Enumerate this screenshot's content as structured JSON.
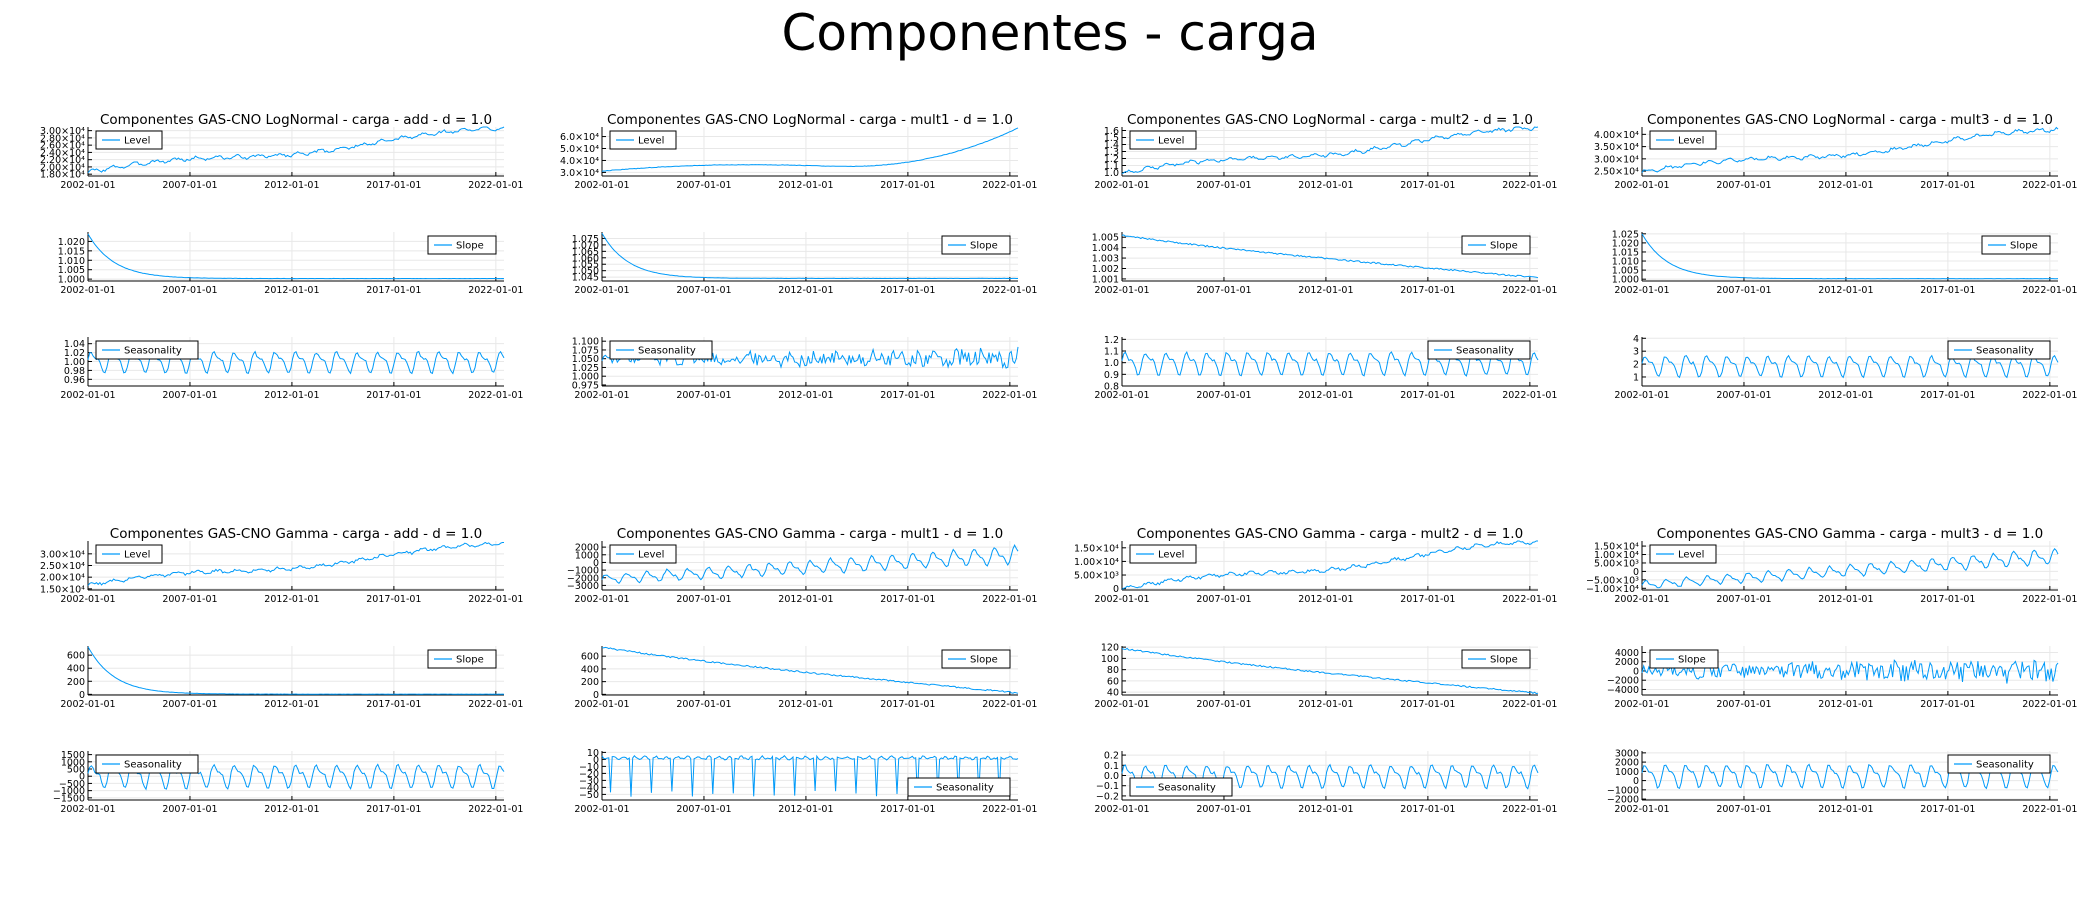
{
  "main_title": "Componentes - carga",
  "colors": {
    "line": "#009af9",
    "axis": "#000000",
    "grid": "#e8e8e8",
    "legend_border": "#000000"
  },
  "chart_data": [
    {
      "title": "Componentes GAS-CNO LogNormal - carga - add - d = 1.0",
      "panels": [
        {
          "type": "line",
          "legend": "Level",
          "legend_pos": "top-left",
          "shape": "trend_rise",
          "ylim": [
            17500,
            31000
          ],
          "yticks": [
            18000,
            20000,
            22000,
            24000,
            26000,
            28000,
            30000
          ],
          "ytick_labels": [
            "1.80×10⁴",
            "2.00×10⁴",
            "2.20×10⁴",
            "2.40×10⁴",
            "2.60×10⁴",
            "2.80×10⁴",
            "3.00×10⁴"
          ],
          "start": 0.08,
          "end": 0.95
        },
        {
          "type": "line",
          "legend": "Slope",
          "legend_pos": "top-right",
          "shape": "fast_decay",
          "ylim": [
            0.999,
            1.025
          ],
          "yticks": [
            1.0,
            1.005,
            1.01,
            1.015,
            1.02
          ],
          "ytick_labels": [
            "1.000",
            "1.005",
            "1.010",
            "1.015",
            "1.020"
          ],
          "start": 1.024,
          "end": 1.0003
        },
        {
          "type": "line",
          "legend": "Seasonality",
          "legend_pos": "top-left",
          "shape": "seasonal",
          "ylim": [
            0.945,
            1.055
          ],
          "yticks": [
            0.96,
            0.98,
            1.0,
            1.02,
            1.04
          ],
          "ytick_labels": [
            "0.96",
            "0.98",
            "1.00",
            "1.02",
            "1.04"
          ],
          "center": 1.0,
          "amp": 0.046
        }
      ]
    },
    {
      "title": "Componentes GAS-CNO LogNormal - carga - mult1 - d = 1.0",
      "panels": [
        {
          "type": "line",
          "legend": "Level",
          "legend_pos": "top-left",
          "shape": "u_curve",
          "ylim": [
            27000,
            68000
          ],
          "yticks": [
            30000,
            40000,
            50000,
            60000
          ],
          "ytick_labels": [
            "3.0×10⁴",
            "4.0×10⁴",
            "5.0×10⁴",
            "6.0×10⁴"
          ],
          "start": 0.1,
          "end": 0.98
        },
        {
          "type": "line",
          "legend": "Slope",
          "legend_pos": "top-right",
          "shape": "fast_decay",
          "ylim": [
            1.042,
            1.08
          ],
          "yticks": [
            1.045,
            1.05,
            1.055,
            1.06,
            1.065,
            1.07,
            1.075
          ],
          "ytick_labels": [
            "1.045",
            "1.050",
            "1.055",
            "1.060",
            "1.065",
            "1.070",
            "1.075"
          ],
          "start": 1.079,
          "end": 1.044
        },
        {
          "type": "line",
          "legend": "Seasonality",
          "legend_pos": "top-left",
          "shape": "noisy",
          "ylim": [
            0.972,
            1.112
          ],
          "yticks": [
            0.975,
            1.0,
            1.025,
            1.05,
            1.075,
            1.1
          ],
          "ytick_labels": [
            "0.975",
            "1.000",
            "1.025",
            "1.050",
            "1.075",
            "1.100"
          ],
          "center": 1.05,
          "amp": 0.02
        }
      ]
    },
    {
      "title": "Componentes GAS-CNO LogNormal - carga - mult2 - d = 1.0",
      "panels": [
        {
          "type": "line",
          "legend": "Level",
          "legend_pos": "top-left",
          "shape": "trend_rise",
          "ylim": [
            0.95,
            1.65
          ],
          "yticks": [
            1.0,
            1.1,
            1.2,
            1.3,
            1.4,
            1.5,
            1.6
          ],
          "ytick_labels": [
            "1.0",
            "1.1",
            "1.2",
            "1.3",
            "1.4",
            "1.5",
            "1.6"
          ],
          "start": 0.06,
          "end": 0.95
        },
        {
          "type": "line",
          "legend": "Slope",
          "legend_pos": "top-right",
          "shape": "linear_decay",
          "ylim": [
            1.0008,
            1.0055
          ],
          "yticks": [
            1.001,
            1.002,
            1.003,
            1.004,
            1.005
          ],
          "ytick_labels": [
            "1.001",
            "1.002",
            "1.003",
            "1.004",
            "1.005"
          ],
          "start": 1.0052,
          "end": 1.0011
        },
        {
          "type": "line",
          "legend": "Seasonality",
          "legend_pos": "top-right",
          "shape": "seasonal",
          "ylim": [
            0.8,
            1.22
          ],
          "yticks": [
            0.8,
            0.9,
            1.0,
            1.1,
            1.2
          ],
          "ytick_labels": [
            "0.8",
            "0.9",
            "1.0",
            "1.1",
            "1.2"
          ],
          "center": 1.0,
          "amp": 0.19
        }
      ]
    },
    {
      "title": "Componentes GAS-CNO LogNormal - carga - mult3 - d = 1.0",
      "panels": [
        {
          "type": "line",
          "legend": "Level",
          "legend_pos": "top-left",
          "shape": "trend_rise",
          "ylim": [
            23000,
            43000
          ],
          "yticks": [
            25000,
            30000,
            35000,
            40000
          ],
          "ytick_labels": [
            "2.50×10⁴",
            "3.00×10⁴",
            "3.50×10⁴",
            "4.00×10⁴"
          ],
          "start": 0.08,
          "end": 0.92
        },
        {
          "type": "line",
          "legend": "Slope",
          "legend_pos": "top-right",
          "shape": "fast_decay",
          "ylim": [
            0.999,
            1.026
          ],
          "yticks": [
            1.0,
            1.005,
            1.01,
            1.015,
            1.02,
            1.025
          ],
          "ytick_labels": [
            "1.000",
            "1.005",
            "1.010",
            "1.015",
            "1.020",
            "1.025"
          ],
          "start": 1.025,
          "end": 1.0003
        },
        {
          "type": "line",
          "legend": "Seasonality",
          "legend_pos": "top-right",
          "shape": "seasonal",
          "ylim": [
            0.3,
            4.1
          ],
          "yticks": [
            1,
            2,
            3,
            4
          ],
          "ytick_labels": [
            "1",
            "2",
            "3",
            "4"
          ],
          "center": 1.9,
          "amp": 1.6
        }
      ]
    },
    {
      "title": "Componentes GAS-CNO Gamma - carga - add - d = 1.0",
      "panels": [
        {
          "type": "line",
          "legend": "Level",
          "legend_pos": "top-left",
          "shape": "trend_rise",
          "ylim": [
            14500,
            35500
          ],
          "yticks": [
            15000,
            20000,
            25000,
            30000
          ],
          "ytick_labels": [
            "1.50×10⁴",
            "2.00×10⁴",
            "2.50×10⁴",
            "3.00×10⁴"
          ],
          "start": 0.1,
          "end": 0.92
        },
        {
          "type": "line",
          "legend": "Slope",
          "legend_pos": "top-right",
          "shape": "fast_decay",
          "ylim": [
            -10,
            740
          ],
          "yticks": [
            0,
            200,
            400,
            600
          ],
          "ytick_labels": [
            "0",
            "200",
            "400",
            "600"
          ],
          "start": 730,
          "end": 3
        },
        {
          "type": "line",
          "legend": "Seasonality",
          "legend_pos": "top-left",
          "shape": "seasonal",
          "ylim": [
            -1650,
            1750
          ],
          "yticks": [
            -1500,
            -1000,
            -500,
            0,
            500,
            1000,
            1500
          ],
          "ytick_labels": [
            "−1500",
            "−1000",
            "−500",
            "0",
            "500",
            "1000",
            "1500"
          ],
          "center": 50,
          "amp": 1600
        }
      ]
    },
    {
      "title": "Componentes GAS-CNO Gamma - carga - mult1 - d = 1.0",
      "panels": [
        {
          "type": "line",
          "legend": "Level",
          "legend_pos": "top-left",
          "shape": "seasonal_trend",
          "ylim": [
            -3600,
            2800
          ],
          "yticks": [
            -3000,
            -2000,
            -1000,
            0,
            1000,
            2000
          ],
          "ytick_labels": [
            "−3000",
            "−2000",
            "−1000",
            "0",
            "1000",
            "2000"
          ],
          "start": -2200,
          "end": 1000,
          "amp": 1300
        },
        {
          "type": "line",
          "legend": "Slope",
          "legend_pos": "top-right",
          "shape": "linear_decay",
          "ylim": [
            -10,
            760
          ],
          "yticks": [
            0,
            200,
            400,
            600
          ],
          "ytick_labels": [
            "0",
            "200",
            "400",
            "600"
          ],
          "start": 740,
          "end": 20
        },
        {
          "type": "line",
          "legend": "Seasonality",
          "legend_pos": "bottom-right",
          "shape": "spiky",
          "ylim": [
            -58,
            12
          ],
          "yticks": [
            -50,
            -40,
            -30,
            -20,
            -10,
            0,
            10
          ],
          "ytick_labels": [
            "−50",
            "−40",
            "−30",
            "−20",
            "−10",
            "0",
            "10"
          ],
          "center": 6,
          "amp": 60
        }
      ]
    },
    {
      "title": "Componentes GAS-CNO Gamma - carga - mult2 - d = 1.0",
      "panels": [
        {
          "type": "line",
          "legend": "Level",
          "legend_pos": "top-left",
          "shape": "trend_rise",
          "ylim": [
            -500,
            17500
          ],
          "yticks": [
            0,
            5000,
            10000,
            15000
          ],
          "ytick_labels": [
            "0",
            "5.00×10³",
            "1.00×10⁴",
            "1.50×10⁴"
          ],
          "start": 0.02,
          "end": 0.96
        },
        {
          "type": "line",
          "legend": "Slope",
          "legend_pos": "top-right",
          "shape": "linear_decay",
          "ylim": [
            35,
            122
          ],
          "yticks": [
            40,
            60,
            80,
            100,
            120
          ],
          "ytick_labels": [
            "40",
            "60",
            "80",
            "100",
            "120"
          ],
          "start": 118,
          "end": 38
        },
        {
          "type": "line",
          "legend": "Seasonality",
          "legend_pos": "bottom-left",
          "shape": "seasonal",
          "ylim": [
            -0.24,
            0.24
          ],
          "yticks": [
            -0.2,
            -0.1,
            0.0,
            0.1,
            0.2
          ],
          "ytick_labels": [
            "−0.2",
            "−0.1",
            "0.0",
            "0.1",
            "0.2"
          ],
          "center": 0.0,
          "amp": 0.22
        }
      ]
    },
    {
      "title": "Componentes GAS-CNO Gamma - carga - mult3 - d = 1.0",
      "panels": [
        {
          "type": "line",
          "legend": "Level",
          "legend_pos": "top-left",
          "shape": "seasonal_trend",
          "ylim": [
            -11000,
            18000
          ],
          "yticks": [
            -10000,
            -5000,
            0,
            5000,
            10000,
            15000
          ],
          "ytick_labels": [
            "−1.00×10⁴",
            "−5.00×10³",
            "0",
            "5.00×10³",
            "1.00×10⁴",
            "1.50×10⁴"
          ],
          "start": -8000,
          "end": 9000,
          "amp": 5000
        },
        {
          "type": "line",
          "legend": "Slope",
          "legend_pos": "top-left",
          "shape": "noisy",
          "ylim": [
            -5200,
            5400
          ],
          "yticks": [
            -4000,
            -2000,
            0,
            2000,
            4000
          ],
          "ytick_labels": [
            "−4000",
            "−2000",
            "0",
            "2000",
            "4000"
          ],
          "center": 0,
          "amp": 1800
        },
        {
          "type": "line",
          "legend": "Seasonality",
          "legend_pos": "top-right",
          "shape": "seasonal",
          "ylim": [
            -2100,
            3200
          ],
          "yticks": [
            -2000,
            -1000,
            0,
            1000,
            2000,
            3000
          ],
          "ytick_labels": [
            "−2000",
            "−1000",
            "0",
            "1000",
            "2000",
            "3000"
          ],
          "center": 600,
          "amp": 2500
        }
      ]
    }
  ],
  "x_axis": {
    "range": [
      2002.0,
      2022.4
    ],
    "ticks": [
      2002,
      2007,
      2012,
      2017,
      2022
    ],
    "tick_labels": [
      "2002-01-01",
      "2007-01-01",
      "2012-01-01",
      "2017-01-01",
      "2022-01-01"
    ]
  }
}
